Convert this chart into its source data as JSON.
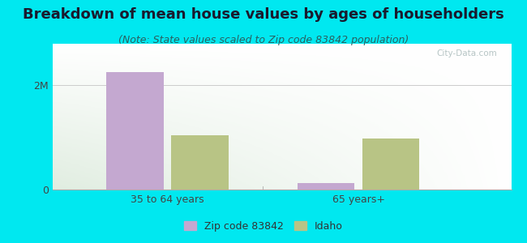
{
  "title": "Breakdown of mean house values by ages of householders",
  "subtitle": "(Note: State values scaled to Zip code 83842 population)",
  "categories": [
    "35 to 64 years",
    "65 years+"
  ],
  "zip_values": [
    2250000,
    120000
  ],
  "state_values": [
    1050000,
    980000
  ],
  "zip_color": "#c4a8d0",
  "state_color": "#b8c485",
  "background_outer": "#00e8f0",
  "ytick_label": "2M",
  "ytick_value": 2000000,
  "ylim": [
    0,
    2800000
  ],
  "bar_width": 0.3,
  "legend_zip_label": "Zip code 83842",
  "legend_state_label": "Idaho",
  "title_fontsize": 13,
  "subtitle_fontsize": 9,
  "watermark": "City-Data.com"
}
